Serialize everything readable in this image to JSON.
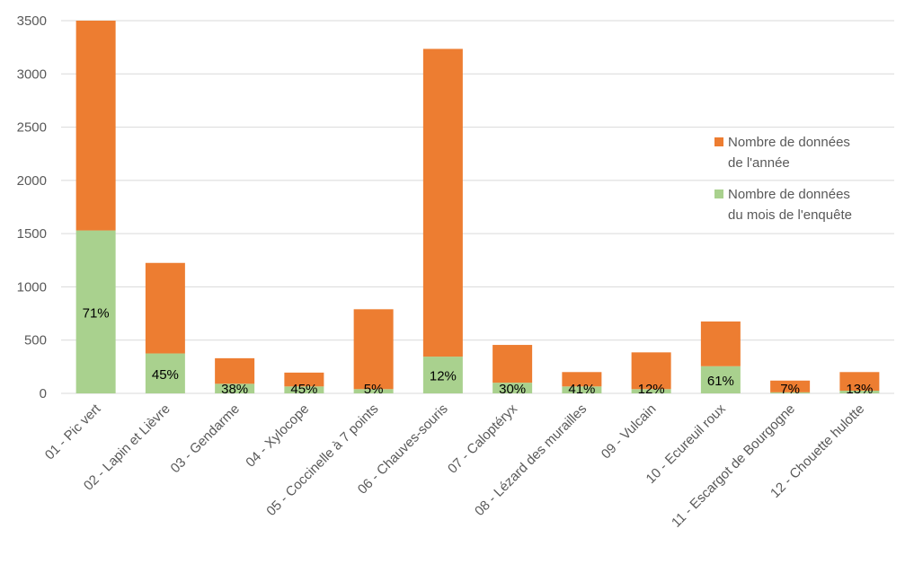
{
  "chart_data": {
    "type": "bar",
    "stacked": true,
    "categories": [
      "01 - Pic vert",
      "02 - Lapin et Lièvre",
      "03 - Gendarme",
      "04 - Xylocope",
      "05 - Coccinelle à 7 points",
      "06 - Chauves-souris",
      "07 - Caloptéryx",
      "08 - Lézard des murailles",
      "09 - Vulcain",
      "10 - Ecureuil roux",
      "11 - Escargot de Bourgogne",
      "12 - Chouette hulotte"
    ],
    "series": [
      {
        "name": "Nombre de données du mois de l'enquête",
        "legend_lines": [
          "Nombre de données",
          "du mois de l'enquête"
        ],
        "color": "#a9d18e",
        "values": [
          1530,
          375,
          90,
          65,
          40,
          345,
          100,
          65,
          40,
          255,
          10,
          25
        ]
      },
      {
        "name": "Nombre de données de l'année",
        "legend_lines": [
          "Nombre de données",
          "de l'année"
        ],
        "color": "#ed7d31",
        "values": [
          1970,
          850,
          240,
          130,
          750,
          2890,
          355,
          135,
          345,
          420,
          110,
          175
        ]
      }
    ],
    "data_labels": [
      "71%",
      "45%",
      "38%",
      "45%",
      "5%",
      "12%",
      "30%",
      "41%",
      "12%",
      "61%",
      "7%",
      "13%"
    ],
    "y_ticks": [
      "0",
      "500",
      "1000",
      "1500",
      "2000",
      "2500",
      "3000",
      "3500"
    ],
    "ylim": [
      0,
      3500
    ],
    "grid": true,
    "legend_position": "right"
  }
}
